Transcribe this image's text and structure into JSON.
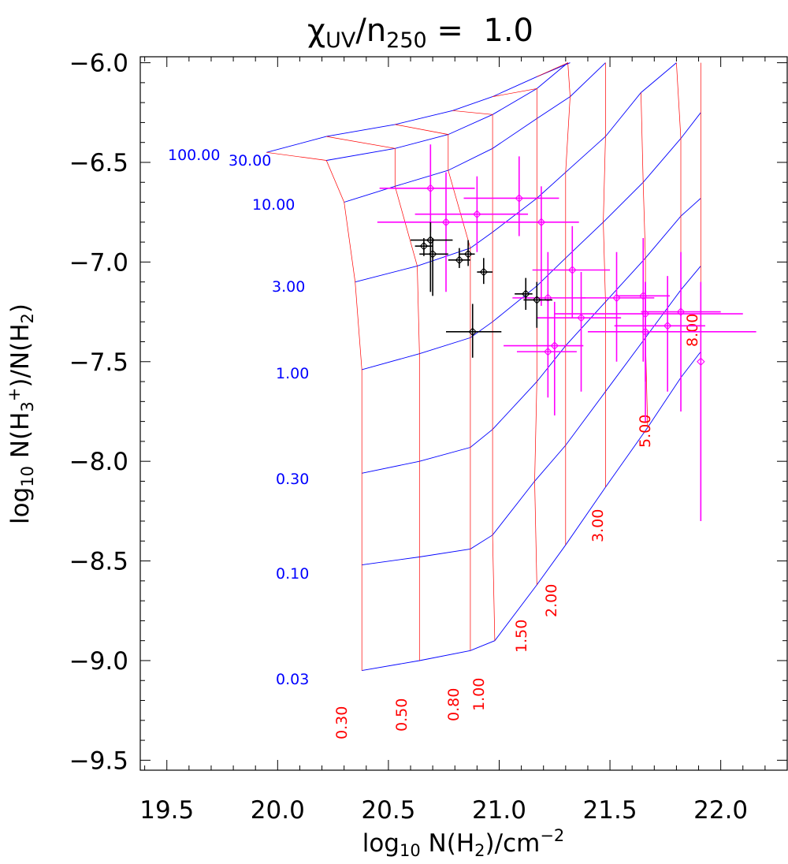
{
  "chart_data": {
    "type": "scatter",
    "title": {
      "main": "χ",
      "sub1": "UV",
      "slash": "/n",
      "sub2": "250",
      "rest": " =  1.0"
    },
    "xlabel": {
      "pre": "log",
      "sub": "10",
      "mid": " N(H",
      "sub2": "2",
      "post": ")/cm",
      "sup": "−2"
    },
    "ylabel": {
      "pre": "log",
      "sub": "10",
      "a": " N(H",
      "sub2": "3",
      "sup": "+",
      "b": ")/N(H",
      "sub3": "2",
      "c": ")"
    },
    "xlim": [
      19.38,
      22.3
    ],
    "ylim": [
      -9.55,
      -5.97
    ],
    "xticks": [
      19.5,
      20.0,
      20.5,
      21.0,
      21.5,
      22.0
    ],
    "xtick_labels": [
      "19.5",
      "20.0",
      "20.5",
      "21.0",
      "21.5",
      "22.0"
    ],
    "yticks": [
      -6.0,
      -6.5,
      -7.0,
      -7.5,
      -8.0,
      -8.5,
      -9.0,
      -9.5
    ],
    "ytick_labels": [
      "−6.0",
      "−6.5",
      "−7.0",
      "−7.5",
      "−8.0",
      "−8.5",
      "−9.0",
      "−9.5"
    ],
    "grid_model": {
      "blue_param_labels": [
        "100.00",
        "30.00",
        "10.00",
        "3.00",
        "1.00",
        "0.30",
        "0.10",
        "0.03"
      ],
      "red_param_labels": [
        "0.30",
        "0.50",
        "0.80",
        "1.00",
        "1.50",
        "2.00",
        "3.00",
        "5.00",
        "8.00"
      ],
      "blue_curves": [
        [
          [
            19.95,
            -6.45
          ],
          [
            20.22,
            -6.37
          ],
          [
            20.53,
            -6.31
          ],
          [
            20.79,
            -6.24
          ],
          [
            20.97,
            -6.17
          ],
          [
            21.17,
            -6.07
          ],
          [
            21.32,
            -6.0
          ]
        ],
        [
          [
            20.22,
            -6.49
          ],
          [
            20.53,
            -6.43
          ],
          [
            20.77,
            -6.36
          ],
          [
            20.97,
            -6.26
          ],
          [
            21.17,
            -6.13
          ],
          [
            21.31,
            -6.0
          ]
        ],
        [
          [
            20.3,
            -6.7
          ],
          [
            20.53,
            -6.62
          ],
          [
            20.77,
            -6.54
          ],
          [
            20.97,
            -6.43
          ],
          [
            21.17,
            -6.28
          ],
          [
            21.32,
            -6.17
          ],
          [
            21.48,
            -6.0
          ]
        ],
        [
          [
            20.35,
            -7.1
          ],
          [
            20.63,
            -7.02
          ],
          [
            20.87,
            -6.93
          ],
          [
            20.97,
            -6.85
          ],
          [
            21.17,
            -6.68
          ],
          [
            21.3,
            -6.55
          ],
          [
            21.48,
            -6.37
          ],
          [
            21.64,
            -6.15
          ],
          [
            21.8,
            -6.0
          ]
        ],
        [
          [
            20.38,
            -7.54
          ],
          [
            20.64,
            -7.46
          ],
          [
            20.87,
            -7.38
          ],
          [
            20.97,
            -7.3
          ],
          [
            21.17,
            -7.12
          ],
          [
            21.3,
            -6.98
          ],
          [
            21.47,
            -6.8
          ],
          [
            21.65,
            -6.6
          ],
          [
            21.82,
            -6.38
          ],
          [
            21.91,
            -6.25
          ]
        ],
        [
          [
            20.38,
            -8.06
          ],
          [
            20.64,
            -8.0
          ],
          [
            20.87,
            -7.93
          ],
          [
            20.97,
            -7.84
          ],
          [
            21.17,
            -7.6
          ],
          [
            21.3,
            -7.42
          ],
          [
            21.48,
            -7.2
          ],
          [
            21.66,
            -6.98
          ],
          [
            21.82,
            -6.77
          ],
          [
            21.91,
            -6.68
          ]
        ],
        [
          [
            20.38,
            -8.52
          ],
          [
            20.64,
            -8.48
          ],
          [
            20.87,
            -8.44
          ],
          [
            20.97,
            -8.37
          ],
          [
            21.16,
            -8.1
          ],
          [
            21.3,
            -7.92
          ],
          [
            21.48,
            -7.65
          ],
          [
            21.66,
            -7.38
          ],
          [
            21.82,
            -7.14
          ],
          [
            21.91,
            -7.02
          ]
        ],
        [
          [
            20.38,
            -9.05
          ],
          [
            20.64,
            -9.0
          ],
          [
            20.87,
            -8.95
          ],
          [
            20.98,
            -8.9
          ],
          [
            21.17,
            -8.62
          ],
          [
            21.3,
            -8.42
          ],
          [
            21.48,
            -8.13
          ],
          [
            21.67,
            -7.83
          ],
          [
            21.82,
            -7.58
          ],
          [
            21.91,
            -7.45
          ]
        ]
      ],
      "red_curves": [
        [
          [
            19.95,
            -6.45
          ],
          [
            20.22,
            -6.49
          ],
          [
            20.3,
            -6.7
          ],
          [
            20.35,
            -7.1
          ],
          [
            20.38,
            -7.54
          ],
          [
            20.38,
            -8.06
          ],
          [
            20.38,
            -8.52
          ],
          [
            20.38,
            -9.05
          ]
        ],
        [
          [
            20.22,
            -6.37
          ],
          [
            20.53,
            -6.43
          ],
          [
            20.53,
            -6.62
          ],
          [
            20.63,
            -7.02
          ],
          [
            20.64,
            -7.46
          ],
          [
            20.64,
            -8.0
          ],
          [
            20.64,
            -8.48
          ],
          [
            20.64,
            -9.0
          ]
        ],
        [
          [
            20.53,
            -6.31
          ],
          [
            20.77,
            -6.36
          ],
          [
            20.77,
            -6.54
          ],
          [
            20.87,
            -6.93
          ],
          [
            20.87,
            -7.38
          ],
          [
            20.87,
            -7.93
          ],
          [
            20.87,
            -8.44
          ],
          [
            20.87,
            -8.95
          ]
        ],
        [
          [
            20.79,
            -6.24
          ],
          [
            20.97,
            -6.26
          ],
          [
            20.97,
            -6.43
          ],
          [
            20.97,
            -6.85
          ],
          [
            20.97,
            -7.3
          ],
          [
            20.97,
            -7.84
          ],
          [
            20.97,
            -8.37
          ],
          [
            20.98,
            -8.9
          ]
        ],
        [
          [
            20.97,
            -6.17
          ],
          [
            21.17,
            -6.13
          ],
          [
            21.17,
            -6.28
          ],
          [
            21.17,
            -6.68
          ],
          [
            21.17,
            -7.12
          ],
          [
            21.17,
            -7.6
          ],
          [
            21.16,
            -8.1
          ],
          [
            21.17,
            -8.62
          ]
        ],
        [
          [
            21.17,
            -6.07
          ],
          [
            21.31,
            -6.0
          ],
          [
            21.32,
            -6.17
          ],
          [
            21.3,
            -6.55
          ],
          [
            21.3,
            -6.98
          ],
          [
            21.3,
            -7.42
          ],
          [
            21.3,
            -7.92
          ],
          [
            21.3,
            -8.42
          ]
        ],
        [
          [
            21.48,
            -6.0
          ],
          [
            21.48,
            -6.37
          ],
          [
            21.47,
            -6.8
          ],
          [
            21.48,
            -7.2
          ],
          [
            21.48,
            -7.65
          ],
          [
            21.48,
            -8.13
          ]
        ],
        [
          [
            21.64,
            -6.15
          ],
          [
            21.65,
            -6.6
          ],
          [
            21.66,
            -6.98
          ],
          [
            21.66,
            -7.38
          ],
          [
            21.67,
            -7.83
          ]
        ],
        [
          [
            21.8,
            -6.0
          ],
          [
            21.82,
            -6.38
          ],
          [
            21.82,
            -6.77
          ],
          [
            21.82,
            -7.14
          ],
          [
            21.82,
            -7.58
          ]
        ],
        [
          [
            21.91,
            -6.0
          ],
          [
            21.91,
            -6.25
          ],
          [
            21.91,
            -6.68
          ],
          [
            21.91,
            -7.02
          ],
          [
            21.91,
            -7.45
          ]
        ]
      ]
    },
    "series": [
      {
        "name": "magenta",
        "color": "#ff00ff",
        "points": [
          {
            "x": 20.69,
            "y": -6.63,
            "xlo": 20.46,
            "xhi": 20.89,
            "ylo": -6.85,
            "yhi": -6.41
          },
          {
            "x": 21.09,
            "y": -6.68,
            "xlo": 20.84,
            "xhi": 21.27,
            "ylo": -6.87,
            "yhi": -6.47
          },
          {
            "x": 20.9,
            "y": -6.76,
            "xlo": 20.62,
            "xhi": 21.13,
            "ylo": -6.95,
            "yhi": -6.57
          },
          {
            "x": 20.76,
            "y": -6.8,
            "xlo": 20.45,
            "xhi": 20.98,
            "ylo": -7.15,
            "yhi": -6.55
          },
          {
            "x": 21.19,
            "y": -6.8,
            "xlo": 20.98,
            "xhi": 21.36,
            "ylo": -7.22,
            "yhi": -6.62
          },
          {
            "x": 21.33,
            "y": -7.04,
            "xlo": 21.15,
            "xhi": 21.5,
            "ylo": -7.28,
            "yhi": -6.82
          },
          {
            "x": 21.22,
            "y": -7.18,
            "xlo": 21.06,
            "xhi": 21.39,
            "ylo": -7.45,
            "yhi": -6.95
          },
          {
            "x": 21.53,
            "y": -7.18,
            "xlo": 21.37,
            "xhi": 21.7,
            "ylo": -7.5,
            "yhi": -6.95
          },
          {
            "x": 21.65,
            "y": -7.17,
            "xlo": 21.53,
            "xhi": 21.77,
            "ylo": -7.5,
            "yhi": -6.88
          },
          {
            "x": 21.82,
            "y": -7.25,
            "xlo": 21.64,
            "xhi": 22.0,
            "ylo": -7.75,
            "yhi": -6.95
          },
          {
            "x": 21.66,
            "y": -7.26,
            "xlo": 21.25,
            "xhi": 22.1,
            "ylo": -7.6,
            "yhi": -7.1
          },
          {
            "x": 21.37,
            "y": -7.28,
            "xlo": 21.17,
            "xhi": 21.55,
            "ylo": -7.65,
            "yhi": -7.05
          },
          {
            "x": 21.76,
            "y": -7.32,
            "xlo": 21.52,
            "xhi": 21.93,
            "ylo": -7.65,
            "yhi": -7.07
          },
          {
            "x": 21.66,
            "y": -7.35,
            "xlo": 21.4,
            "xhi": 22.16,
            "ylo": -7.8,
            "yhi": -7.1
          },
          {
            "x": 21.25,
            "y": -7.42,
            "xlo": 21.02,
            "xhi": 21.38,
            "ylo": -7.77,
            "yhi": -7.2
          },
          {
            "x": 21.22,
            "y": -7.45,
            "xlo": 21.08,
            "xhi": 21.35,
            "ylo": -7.68,
            "yhi": -7.2
          },
          {
            "x": 21.91,
            "y": -7.5,
            "xlo": 21.91,
            "xhi": 21.91,
            "ylo": -8.3,
            "yhi": -7.1
          }
        ]
      },
      {
        "name": "black",
        "color": "#000000",
        "points": [
          {
            "x": 20.66,
            "y": -6.92,
            "xlo": 20.62,
            "xhi": 20.7,
            "ylo": -6.97,
            "yhi": -6.88
          },
          {
            "x": 20.69,
            "y": -6.89,
            "xlo": 20.6,
            "xhi": 20.79,
            "ylo": -7.15,
            "yhi": -6.8
          },
          {
            "x": 20.7,
            "y": -6.96,
            "xlo": 20.64,
            "xhi": 20.77,
            "ylo": -7.17,
            "yhi": -6.88
          },
          {
            "x": 20.82,
            "y": -6.99,
            "xlo": 20.77,
            "xhi": 20.87,
            "ylo": -7.03,
            "yhi": -6.93
          },
          {
            "x": 20.86,
            "y": -6.96,
            "xlo": 20.82,
            "xhi": 20.89,
            "ylo": -7.02,
            "yhi": -6.89
          },
          {
            "x": 20.93,
            "y": -7.05,
            "xlo": 20.9,
            "xhi": 20.97,
            "ylo": -7.11,
            "yhi": -6.98
          },
          {
            "x": 21.12,
            "y": -7.16,
            "xlo": 21.07,
            "xhi": 21.15,
            "ylo": -7.24,
            "yhi": -7.08
          },
          {
            "x": 21.17,
            "y": -7.19,
            "xlo": 21.11,
            "xhi": 21.24,
            "ylo": -7.33,
            "yhi": -7.1
          },
          {
            "x": 20.88,
            "y": -7.35,
            "xlo": 20.76,
            "xhi": 21.01,
            "ylo": -7.48,
            "yhi": -7.21
          }
        ]
      }
    ]
  }
}
